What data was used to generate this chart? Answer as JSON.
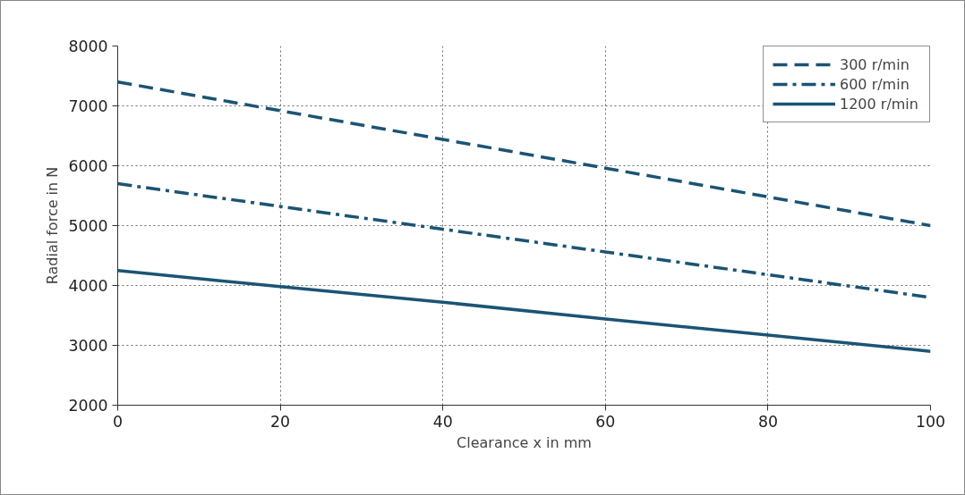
{
  "chart_data": {
    "type": "line",
    "xlabel": "Clearance x in mm",
    "ylabel": "Radial force in N",
    "x": [
      0,
      20,
      40,
      60,
      80,
      100
    ],
    "series": [
      {
        "name": "300 r/min",
        "color": "#1b5474",
        "values": [
          7400,
          6920,
          6440,
          5960,
          5480,
          5000
        ],
        "line_style": "dashed"
      },
      {
        "name": "600 r/min",
        "color": "#1b5474",
        "values": [
          5700,
          5320,
          4940,
          4560,
          4180,
          3800
        ],
        "line_style": "dashdot"
      },
      {
        "name": "1200 r/min",
        "color": "#1b5474",
        "values": [
          4250,
          3980,
          3720,
          3440,
          3170,
          2900
        ],
        "line_style": "solid"
      }
    ],
    "xlim": [
      0,
      100
    ],
    "xticks": [
      0,
      20,
      40,
      60,
      80,
      100
    ],
    "ylim": [
      2000,
      8000
    ],
    "yticks": [
      2000,
      3000,
      4000,
      5000,
      6000,
      7000,
      8000
    ],
    "grid": true,
    "legend": "top right",
    "marker": "none"
  }
}
